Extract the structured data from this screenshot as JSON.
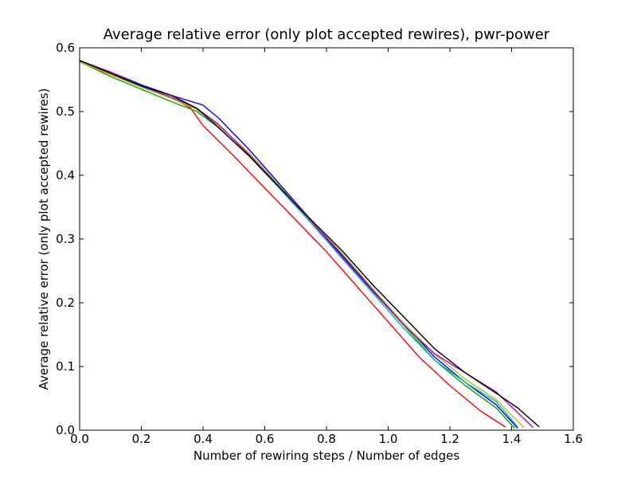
{
  "chart_data": {
    "type": "line",
    "title": "Average relative error (only plot accepted rewires), pwr-power",
    "xlabel": "Number of rewiring steps / Number of edges",
    "ylabel": "Average relative error (only plot accepted rewires)",
    "xlim": [
      0.0,
      1.6
    ],
    "ylim": [
      0.0,
      0.6
    ],
    "xticks": [
      "0.0",
      "0.2",
      "0.4",
      "0.6",
      "0.8",
      "1.0",
      "1.2",
      "1.4",
      "1.6"
    ],
    "yticks": [
      "0.0",
      "0.1",
      "0.2",
      "0.3",
      "0.4",
      "0.5",
      "0.6"
    ],
    "grid": false,
    "legend": "none",
    "series": [
      {
        "color": "#ff0000",
        "x": [
          0.0,
          0.1,
          0.2,
          0.3,
          0.36,
          0.4,
          0.5,
          0.6,
          0.7,
          0.8,
          0.9,
          1.0,
          1.1,
          1.2,
          1.3,
          1.38
        ],
        "y": [
          0.578,
          0.558,
          0.54,
          0.522,
          0.505,
          0.478,
          0.43,
          0.38,
          0.33,
          0.28,
          0.225,
          0.17,
          0.115,
          0.07,
          0.03,
          0.005
        ]
      },
      {
        "color": "#00aa00",
        "x": [
          0.0,
          0.1,
          0.2,
          0.3,
          0.38,
          0.45,
          0.55,
          0.65,
          0.75,
          0.85,
          0.95,
          1.05,
          1.15,
          1.25,
          1.35,
          1.41
        ],
        "y": [
          0.578,
          0.555,
          0.535,
          0.515,
          0.5,
          0.475,
          0.43,
          0.38,
          0.33,
          0.275,
          0.22,
          0.165,
          0.11,
          0.07,
          0.035,
          0.003
        ]
      },
      {
        "color": "#0000ff",
        "x": [
          0.0,
          0.1,
          0.2,
          0.3,
          0.4,
          0.45,
          0.55,
          0.65,
          0.75,
          0.85,
          0.95,
          1.05,
          1.15,
          1.25,
          1.35,
          1.42
        ],
        "y": [
          0.58,
          0.562,
          0.542,
          0.525,
          0.51,
          0.49,
          0.44,
          0.385,
          0.33,
          0.275,
          0.22,
          0.168,
          0.115,
          0.075,
          0.04,
          0.003
        ]
      },
      {
        "color": "#00bfbf",
        "x": [
          0.0,
          0.1,
          0.2,
          0.3,
          0.38,
          0.45,
          0.55,
          0.65,
          0.75,
          0.85,
          0.95,
          1.05,
          1.15,
          1.25,
          1.35,
          1.42
        ],
        "y": [
          0.58,
          0.56,
          0.54,
          0.522,
          0.505,
          0.475,
          0.43,
          0.378,
          0.325,
          0.27,
          0.215,
          0.16,
          0.11,
          0.075,
          0.045,
          0.005
        ]
      },
      {
        "color": "#bfbf00",
        "x": [
          0.0,
          0.1,
          0.2,
          0.3,
          0.38,
          0.45,
          0.55,
          0.65,
          0.75,
          0.85,
          0.95,
          1.05,
          1.15,
          1.25,
          1.35,
          1.44
        ],
        "y": [
          0.578,
          0.558,
          0.538,
          0.52,
          0.503,
          0.478,
          0.435,
          0.382,
          0.33,
          0.278,
          0.222,
          0.168,
          0.12,
          0.08,
          0.048,
          0.004
        ]
      },
      {
        "color": "#bf00bf",
        "x": [
          0.0,
          0.1,
          0.2,
          0.3,
          0.38,
          0.45,
          0.55,
          0.65,
          0.75,
          0.85,
          0.95,
          1.05,
          1.15,
          1.25,
          1.35,
          1.47
        ],
        "y": [
          0.58,
          0.562,
          0.54,
          0.522,
          0.505,
          0.48,
          0.432,
          0.38,
          0.328,
          0.272,
          0.218,
          0.165,
          0.12,
          0.09,
          0.06,
          0.004
        ]
      },
      {
        "color": "#000000",
        "x": [
          0.0,
          0.1,
          0.2,
          0.3,
          0.38,
          0.45,
          0.55,
          0.65,
          0.75,
          0.85,
          0.95,
          1.05,
          1.15,
          1.25,
          1.35,
          1.42,
          1.49
        ],
        "y": [
          0.58,
          0.56,
          0.54,
          0.525,
          0.505,
          0.475,
          0.43,
          0.38,
          0.33,
          0.282,
          0.228,
          0.178,
          0.128,
          0.09,
          0.058,
          0.035,
          0.005
        ]
      }
    ]
  }
}
